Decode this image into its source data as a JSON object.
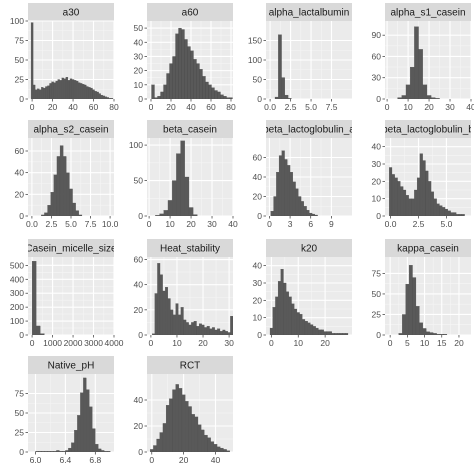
{
  "chart_data": [
    {
      "type": "bar",
      "title": "a30",
      "xlim": [
        -4,
        80
      ],
      "ylim": [
        0,
        100
      ],
      "xticks": [
        0,
        20,
        40,
        60,
        80
      ],
      "yticks": [
        0,
        25,
        50,
        75,
        100
      ],
      "x": [
        0,
        2,
        4,
        6,
        8,
        10,
        12,
        14,
        16,
        18,
        20,
        22,
        24,
        26,
        28,
        30,
        32,
        34,
        36,
        38,
        40,
        42,
        44,
        46,
        48,
        50,
        52,
        54,
        56,
        58,
        60,
        62,
        64,
        66,
        68,
        70,
        72,
        74,
        76,
        78
      ],
      "values": [
        98,
        18,
        12,
        13,
        12,
        15,
        14,
        16,
        17,
        20,
        22,
        21,
        23,
        25,
        24,
        27,
        26,
        28,
        24,
        26,
        25,
        24,
        23,
        21,
        20,
        19,
        18,
        16,
        15,
        14,
        12,
        10,
        9,
        7,
        5,
        4,
        3,
        2,
        1,
        1
      ]
    },
    {
      "type": "bar",
      "title": "a60",
      "xlim": [
        -4,
        82
      ],
      "ylim": [
        0,
        55
      ],
      "xticks": [
        0,
        20,
        40,
        60,
        80
      ],
      "yticks": [
        0,
        10,
        20,
        30,
        40,
        50
      ],
      "x": [
        2,
        5,
        8,
        11,
        14,
        17,
        20,
        23,
        26,
        29,
        32,
        35,
        38,
        41,
        44,
        47,
        50,
        53,
        56,
        59,
        62,
        65,
        68,
        71,
        74,
        77,
        80
      ],
      "values": [
        10,
        1,
        2,
        5,
        10,
        18,
        25,
        30,
        46,
        50,
        49,
        42,
        37,
        34,
        28,
        25,
        21,
        16,
        12,
        10,
        8,
        6,
        5,
        3,
        2,
        1,
        1
      ]
    },
    {
      "type": "bar",
      "title": "alpha_lactalbumin",
      "xlim": [
        -0.5,
        10
      ],
      "ylim": [
        0,
        200
      ],
      "xticks": [
        0.0,
        2.5,
        5.0,
        7.5
      ],
      "yticks": [
        0,
        50,
        100,
        150
      ],
      "x": [
        0.8,
        1.2,
        1.6,
        2.0,
        2.4
      ],
      "values": [
        5,
        165,
        55,
        10,
        2
      ]
    },
    {
      "type": "bar",
      "title": "alpha_s1_casein",
      "xlim": [
        -1,
        40
      ],
      "ylim": [
        0,
        110
      ],
      "xticks": [
        0,
        10,
        20,
        30,
        40
      ],
      "yticks": [
        0,
        30,
        60,
        90
      ],
      "x": [
        6,
        8,
        10,
        12,
        14,
        16,
        18,
        20,
        22,
        24
      ],
      "values": [
        2,
        5,
        20,
        45,
        102,
        70,
        20,
        5,
        2,
        1
      ]
    },
    {
      "type": "bar",
      "title": "alpha_s2_casein",
      "xlim": [
        -0.5,
        10.5
      ],
      "ylim": [
        0,
        72
      ],
      "xticks": [
        0.0,
        2.5,
        5.0,
        7.5,
        10.0
      ],
      "yticks": [
        0,
        20,
        40,
        60
      ],
      "x": [
        1.4,
        1.8,
        2.2,
        2.6,
        3.0,
        3.4,
        3.8,
        4.2,
        4.6,
        5.0,
        5.4,
        5.8,
        6.2
      ],
      "values": [
        1,
        3,
        10,
        22,
        38,
        55,
        65,
        55,
        40,
        25,
        12,
        5,
        1
      ]
    },
    {
      "type": "bar",
      "title": "beta_casein",
      "xlim": [
        -1,
        40
      ],
      "ylim": [
        0,
        110
      ],
      "xticks": [
        0,
        10,
        20,
        30,
        40
      ],
      "yticks": [
        0,
        50,
        100
      ],
      "x": [
        4,
        6,
        8,
        10,
        12,
        14,
        16,
        18,
        20,
        22
      ],
      "values": [
        1,
        3,
        8,
        22,
        50,
        88,
        106,
        55,
        12,
        2
      ]
    },
    {
      "type": "bar",
      "title": "beta_lactoglobulin_a",
      "xlim": [
        -0.5,
        12
      ],
      "ylim": [
        0,
        80
      ],
      "xticks": [
        0,
        3,
        6,
        9
      ],
      "yticks": [
        0,
        20,
        40,
        60
      ],
      "x": [
        0.4,
        0.8,
        1.2,
        1.6,
        2.0,
        2.4,
        2.8,
        3.2,
        3.6,
        4.0,
        4.4,
        4.8,
        5.2,
        5.6,
        6.0,
        6.4,
        6.8
      ],
      "values": [
        5,
        20,
        45,
        62,
        67,
        58,
        52,
        45,
        35,
        28,
        20,
        15,
        10,
        6,
        3,
        2,
        1
      ]
    },
    {
      "type": "bar",
      "title": "beta_lactoglobulin_b",
      "xlim": [
        -0.5,
        7.2
      ],
      "ylim": [
        0,
        45
      ],
      "xticks": [
        0.0,
        2.5,
        5.0
      ],
      "yticks": [
        0,
        10,
        20,
        30,
        40
      ],
      "x": [
        0.0,
        0.25,
        0.5,
        0.75,
        1.0,
        1.25,
        1.5,
        1.75,
        2.0,
        2.25,
        2.5,
        2.75,
        3.0,
        3.25,
        3.5,
        3.75,
        4.0,
        4.25,
        4.5,
        4.75,
        5.0,
        5.25,
        5.5,
        5.75,
        6.0,
        6.25,
        6.5
      ],
      "values": [
        28,
        24,
        22,
        20,
        17,
        15,
        12,
        10,
        10,
        15,
        22,
        36,
        32,
        26,
        20,
        14,
        10,
        7,
        6,
        5,
        4,
        3,
        2,
        2,
        1,
        1,
        1
      ]
    },
    {
      "type": "bar",
      "title": "Casein_micelle_size",
      "xlim": [
        -200,
        4000
      ],
      "ylim": [
        0,
        560
      ],
      "xticks": [
        0,
        1000,
        2000,
        3000,
        4000
      ],
      "yticks": [
        0,
        100,
        200,
        300,
        400,
        500
      ],
      "x": [
        100,
        300,
        500
      ],
      "values": [
        530,
        65,
        10
      ]
    },
    {
      "type": "bar",
      "title": "Heat_stability",
      "xlim": [
        -1.5,
        31.5
      ],
      "ylim": [
        0,
        62
      ],
      "xticks": [
        0,
        10,
        20,
        30
      ],
      "yticks": [
        0,
        20,
        40,
        60
      ],
      "x": [
        1,
        2,
        3,
        4,
        5,
        6,
        7,
        8,
        9,
        10,
        11,
        12,
        13,
        14,
        15,
        16,
        17,
        18,
        19,
        20,
        21,
        22,
        23,
        24,
        25,
        26,
        27,
        28,
        29,
        30,
        31
      ],
      "values": [
        1,
        33,
        57,
        48,
        35,
        38,
        29,
        20,
        16,
        25,
        16,
        22,
        12,
        10,
        8,
        10,
        11,
        7,
        9,
        8,
        6,
        7,
        5,
        6,
        4,
        5,
        3,
        4,
        3,
        2,
        15
      ]
    },
    {
      "type": "bar",
      "title": "k20",
      "xlim": [
        -2,
        30
      ],
      "ylim": [
        0,
        45
      ],
      "xticks": [
        0,
        10,
        20
      ],
      "yticks": [
        0,
        10,
        20,
        30,
        40
      ],
      "x": [
        0,
        1,
        2,
        3,
        4,
        5,
        6,
        7,
        8,
        9,
        10,
        11,
        12,
        13,
        14,
        15,
        16,
        17,
        18,
        19,
        20,
        21,
        22,
        23,
        24,
        25,
        26,
        27,
        28
      ],
      "values": [
        4,
        16,
        22,
        31,
        38,
        30,
        25,
        22,
        18,
        15,
        13,
        12,
        9,
        8,
        7,
        6,
        5,
        4,
        3,
        3,
        2,
        2,
        2,
        1,
        1,
        1,
        1,
        1,
        1
      ]
    },
    {
      "type": "bar",
      "title": "kappa_casein",
      "xlim": [
        -1.5,
        23.5
      ],
      "ylim": [
        0,
        95
      ],
      "xticks": [
        0,
        5,
        10,
        15,
        20
      ],
      "yticks": [
        0,
        25,
        50,
        75
      ],
      "x": [
        3,
        4,
        5,
        6,
        7,
        8,
        9,
        10,
        11,
        12,
        13,
        14,
        15,
        16
      ],
      "values": [
        2,
        25,
        62,
        85,
        70,
        35,
        15,
        8,
        4,
        3,
        2,
        1,
        1,
        1
      ]
    },
    {
      "type": "bar",
      "title": "Native_pH",
      "xlim": [
        5.9,
        7.05
      ],
      "ylim": [
        0,
        100
      ],
      "xticks": [
        6.0,
        6.4,
        6.8
      ],
      "yticks": [
        0,
        25,
        50,
        75
      ],
      "x": [
        6.02,
        6.06,
        6.1,
        6.14,
        6.18,
        6.22,
        6.26,
        6.3,
        6.34,
        6.38,
        6.42,
        6.46,
        6.5,
        6.54,
        6.58,
        6.62,
        6.66,
        6.7,
        6.74,
        6.78,
        6.82,
        6.86,
        6.9,
        6.94,
        6.98
      ],
      "values": [
        1,
        1,
        1,
        1,
        1,
        1,
        1,
        2,
        1,
        1,
        2,
        5,
        12,
        28,
        47,
        76,
        95,
        80,
        58,
        30,
        10,
        4,
        2,
        1,
        1
      ]
    },
    {
      "type": "bar",
      "title": "RCT",
      "xlim": [
        -3,
        51
      ],
      "ylim": [
        0,
        60
      ],
      "xticks": [
        0,
        20,
        40
      ],
      "yticks": [
        0,
        20,
        40
      ],
      "x": [
        0,
        2,
        4,
        6,
        8,
        10,
        12,
        14,
        16,
        18,
        20,
        22,
        24,
        26,
        28,
        30,
        32,
        34,
        36,
        38,
        40,
        42,
        44,
        46,
        48
      ],
      "values": [
        2,
        5,
        10,
        15,
        22,
        36,
        41,
        48,
        52,
        49,
        44,
        39,
        35,
        29,
        27,
        21,
        17,
        13,
        11,
        8,
        6,
        4,
        3,
        2,
        1
      ]
    }
  ]
}
